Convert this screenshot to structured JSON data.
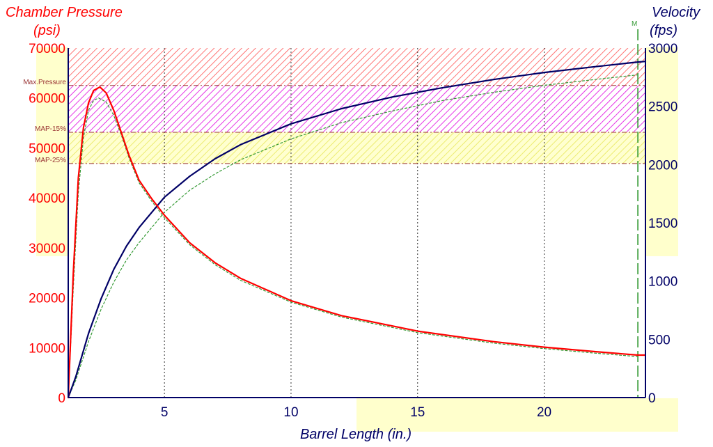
{
  "chart_data": {
    "type": "line",
    "left_axis": {
      "title_line1": "Chamber Pressure",
      "title_line2": "(psi)",
      "ylim": [
        0,
        70000
      ],
      "ticks": [
        "0",
        "10000",
        "20000",
        "30000",
        "40000",
        "50000",
        "60000",
        "70000"
      ],
      "color": "#ff0000"
    },
    "right_axis": {
      "title_line1": "Velocity",
      "title_line2": "(fps)",
      "ylim": [
        0,
        3000
      ],
      "ticks": [
        "0",
        "500",
        "1000",
        "1500",
        "2000",
        "2500",
        "3000"
      ],
      "color": "#000066"
    },
    "x_axis": {
      "label": "Barrel Length (in.)",
      "xlim": [
        1.2,
        24
      ],
      "ticks": [
        {
          "value": 5,
          "label": "5"
        },
        {
          "value": 10,
          "label": "10"
        },
        {
          "value": 15,
          "label": "15"
        },
        {
          "value": 20,
          "label": "20"
        }
      ],
      "grid": true
    },
    "reference_lines": [
      {
        "label": "Max.Pressure",
        "value": 62500
      },
      {
        "label": "MAP-15%",
        "value": 53125
      },
      {
        "label": "MAP-25%",
        "value": 46875
      }
    ],
    "muzzle_marker": {
      "label": "M",
      "x": 23.7
    },
    "colors": {
      "pressure": "#ff0000",
      "velocity": "#000066",
      "reference": "#339933",
      "zone_red": "#ff5050",
      "zone_magenta": "#e000e0",
      "zone_yellow": "#f6f68a",
      "yellow_bg": "#ffffcc"
    },
    "series": [
      {
        "name": "Chamber Pressure",
        "axis": "left",
        "x": [
          1.2,
          1.4,
          1.6,
          1.8,
          2.0,
          2.2,
          2.45,
          2.7,
          3.0,
          3.3,
          3.6,
          4.0,
          4.5,
          5.0,
          6.0,
          7.0,
          8.0,
          10.0,
          12.0,
          15.0,
          18.0,
          20.0,
          22.0,
          23.7,
          24.0
        ],
        "values": [
          0,
          25000,
          44000,
          54000,
          59000,
          61500,
          62200,
          61000,
          57500,
          53000,
          48500,
          43500,
          39800,
          36500,
          31000,
          27000,
          23900,
          19400,
          16400,
          13300,
          11200,
          10100,
          9200,
          8500,
          8500
        ]
      },
      {
        "name": "Velocity",
        "axis": "right",
        "x": [
          1.2,
          1.5,
          2.0,
          2.5,
          3.0,
          3.5,
          4.0,
          5.0,
          6.0,
          7.0,
          8.0,
          10.0,
          12.0,
          14.0,
          16.0,
          18.0,
          20.0,
          22.0,
          23.7,
          24.0
        ],
        "values": [
          0,
          180,
          550,
          850,
          1100,
          1300,
          1460,
          1720,
          1900,
          2050,
          2170,
          2350,
          2480,
          2580,
          2660,
          2730,
          2790,
          2840,
          2880,
          2885
        ]
      },
      {
        "name": "Reference Pressure",
        "axis": "left",
        "x": [
          1.2,
          1.4,
          1.6,
          1.8,
          2.0,
          2.2,
          2.4,
          2.7,
          3.0,
          3.3,
          3.6,
          4.0,
          4.5,
          5.0,
          6.0,
          7.0,
          8.0,
          10.0,
          12.0,
          15.0,
          18.0,
          20.0,
          22.0,
          23.7
        ],
        "values": [
          0,
          22000,
          41000,
          52000,
          57500,
          59500,
          60000,
          59200,
          56500,
          52500,
          48000,
          43000,
          39300,
          36000,
          30600,
          26600,
          23500,
          19100,
          16100,
          13000,
          10900,
          9800,
          8900,
          8200
        ]
      },
      {
        "name": "Reference Velocity",
        "axis": "right",
        "x": [
          1.2,
          1.5,
          2.0,
          2.5,
          3.0,
          3.5,
          4.0,
          5.0,
          6.0,
          7.0,
          8.0,
          10.0,
          12.0,
          14.0,
          16.0,
          18.0,
          20.0,
          22.0,
          23.7
        ],
        "values": [
          0,
          150,
          480,
          760,
          990,
          1180,
          1330,
          1590,
          1780,
          1920,
          2040,
          2220,
          2360,
          2460,
          2550,
          2620,
          2680,
          2730,
          2770
        ]
      }
    ]
  }
}
